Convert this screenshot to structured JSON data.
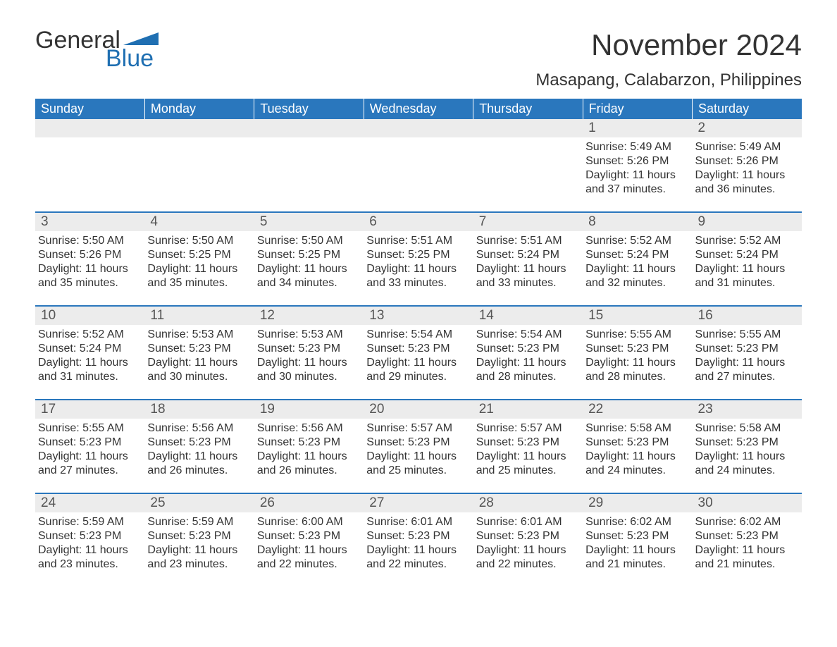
{
  "logo": {
    "text_left": "General",
    "text_right": "Blue",
    "tri_color": "#1f6fb2"
  },
  "title": "November 2024",
  "location": "Masapang, Calabarzon, Philippines",
  "colors": {
    "header_bg": "#2a77bd",
    "header_text": "#ffffff",
    "daynum_bg": "#ececec",
    "rule": "#2a77bd",
    "body_text": "#333333"
  },
  "day_headers": [
    "Sunday",
    "Monday",
    "Tuesday",
    "Wednesday",
    "Thursday",
    "Friday",
    "Saturday"
  ],
  "weeks": [
    [
      null,
      null,
      null,
      null,
      null,
      {
        "n": "1",
        "sunrise": "Sunrise: 5:49 AM",
        "sunset": "Sunset: 5:26 PM",
        "daylight": "Daylight: 11 hours and 37 minutes."
      },
      {
        "n": "2",
        "sunrise": "Sunrise: 5:49 AM",
        "sunset": "Sunset: 5:26 PM",
        "daylight": "Daylight: 11 hours and 36 minutes."
      }
    ],
    [
      {
        "n": "3",
        "sunrise": "Sunrise: 5:50 AM",
        "sunset": "Sunset: 5:26 PM",
        "daylight": "Daylight: 11 hours and 35 minutes."
      },
      {
        "n": "4",
        "sunrise": "Sunrise: 5:50 AM",
        "sunset": "Sunset: 5:25 PM",
        "daylight": "Daylight: 11 hours and 35 minutes."
      },
      {
        "n": "5",
        "sunrise": "Sunrise: 5:50 AM",
        "sunset": "Sunset: 5:25 PM",
        "daylight": "Daylight: 11 hours and 34 minutes."
      },
      {
        "n": "6",
        "sunrise": "Sunrise: 5:51 AM",
        "sunset": "Sunset: 5:25 PM",
        "daylight": "Daylight: 11 hours and 33 minutes."
      },
      {
        "n": "7",
        "sunrise": "Sunrise: 5:51 AM",
        "sunset": "Sunset: 5:24 PM",
        "daylight": "Daylight: 11 hours and 33 minutes."
      },
      {
        "n": "8",
        "sunrise": "Sunrise: 5:52 AM",
        "sunset": "Sunset: 5:24 PM",
        "daylight": "Daylight: 11 hours and 32 minutes."
      },
      {
        "n": "9",
        "sunrise": "Sunrise: 5:52 AM",
        "sunset": "Sunset: 5:24 PM",
        "daylight": "Daylight: 11 hours and 31 minutes."
      }
    ],
    [
      {
        "n": "10",
        "sunrise": "Sunrise: 5:52 AM",
        "sunset": "Sunset: 5:24 PM",
        "daylight": "Daylight: 11 hours and 31 minutes."
      },
      {
        "n": "11",
        "sunrise": "Sunrise: 5:53 AM",
        "sunset": "Sunset: 5:23 PM",
        "daylight": "Daylight: 11 hours and 30 minutes."
      },
      {
        "n": "12",
        "sunrise": "Sunrise: 5:53 AM",
        "sunset": "Sunset: 5:23 PM",
        "daylight": "Daylight: 11 hours and 30 minutes."
      },
      {
        "n": "13",
        "sunrise": "Sunrise: 5:54 AM",
        "sunset": "Sunset: 5:23 PM",
        "daylight": "Daylight: 11 hours and 29 minutes."
      },
      {
        "n": "14",
        "sunrise": "Sunrise: 5:54 AM",
        "sunset": "Sunset: 5:23 PM",
        "daylight": "Daylight: 11 hours and 28 minutes."
      },
      {
        "n": "15",
        "sunrise": "Sunrise: 5:55 AM",
        "sunset": "Sunset: 5:23 PM",
        "daylight": "Daylight: 11 hours and 28 minutes."
      },
      {
        "n": "16",
        "sunrise": "Sunrise: 5:55 AM",
        "sunset": "Sunset: 5:23 PM",
        "daylight": "Daylight: 11 hours and 27 minutes."
      }
    ],
    [
      {
        "n": "17",
        "sunrise": "Sunrise: 5:55 AM",
        "sunset": "Sunset: 5:23 PM",
        "daylight": "Daylight: 11 hours and 27 minutes."
      },
      {
        "n": "18",
        "sunrise": "Sunrise: 5:56 AM",
        "sunset": "Sunset: 5:23 PM",
        "daylight": "Daylight: 11 hours and 26 minutes."
      },
      {
        "n": "19",
        "sunrise": "Sunrise: 5:56 AM",
        "sunset": "Sunset: 5:23 PM",
        "daylight": "Daylight: 11 hours and 26 minutes."
      },
      {
        "n": "20",
        "sunrise": "Sunrise: 5:57 AM",
        "sunset": "Sunset: 5:23 PM",
        "daylight": "Daylight: 11 hours and 25 minutes."
      },
      {
        "n": "21",
        "sunrise": "Sunrise: 5:57 AM",
        "sunset": "Sunset: 5:23 PM",
        "daylight": "Daylight: 11 hours and 25 minutes."
      },
      {
        "n": "22",
        "sunrise": "Sunrise: 5:58 AM",
        "sunset": "Sunset: 5:23 PM",
        "daylight": "Daylight: 11 hours and 24 minutes."
      },
      {
        "n": "23",
        "sunrise": "Sunrise: 5:58 AM",
        "sunset": "Sunset: 5:23 PM",
        "daylight": "Daylight: 11 hours and 24 minutes."
      }
    ],
    [
      {
        "n": "24",
        "sunrise": "Sunrise: 5:59 AM",
        "sunset": "Sunset: 5:23 PM",
        "daylight": "Daylight: 11 hours and 23 minutes."
      },
      {
        "n": "25",
        "sunrise": "Sunrise: 5:59 AM",
        "sunset": "Sunset: 5:23 PM",
        "daylight": "Daylight: 11 hours and 23 minutes."
      },
      {
        "n": "26",
        "sunrise": "Sunrise: 6:00 AM",
        "sunset": "Sunset: 5:23 PM",
        "daylight": "Daylight: 11 hours and 22 minutes."
      },
      {
        "n": "27",
        "sunrise": "Sunrise: 6:01 AM",
        "sunset": "Sunset: 5:23 PM",
        "daylight": "Daylight: 11 hours and 22 minutes."
      },
      {
        "n": "28",
        "sunrise": "Sunrise: 6:01 AM",
        "sunset": "Sunset: 5:23 PM",
        "daylight": "Daylight: 11 hours and 22 minutes."
      },
      {
        "n": "29",
        "sunrise": "Sunrise: 6:02 AM",
        "sunset": "Sunset: 5:23 PM",
        "daylight": "Daylight: 11 hours and 21 minutes."
      },
      {
        "n": "30",
        "sunrise": "Sunrise: 6:02 AM",
        "sunset": "Sunset: 5:23 PM",
        "daylight": "Daylight: 11 hours and 21 minutes."
      }
    ]
  ]
}
